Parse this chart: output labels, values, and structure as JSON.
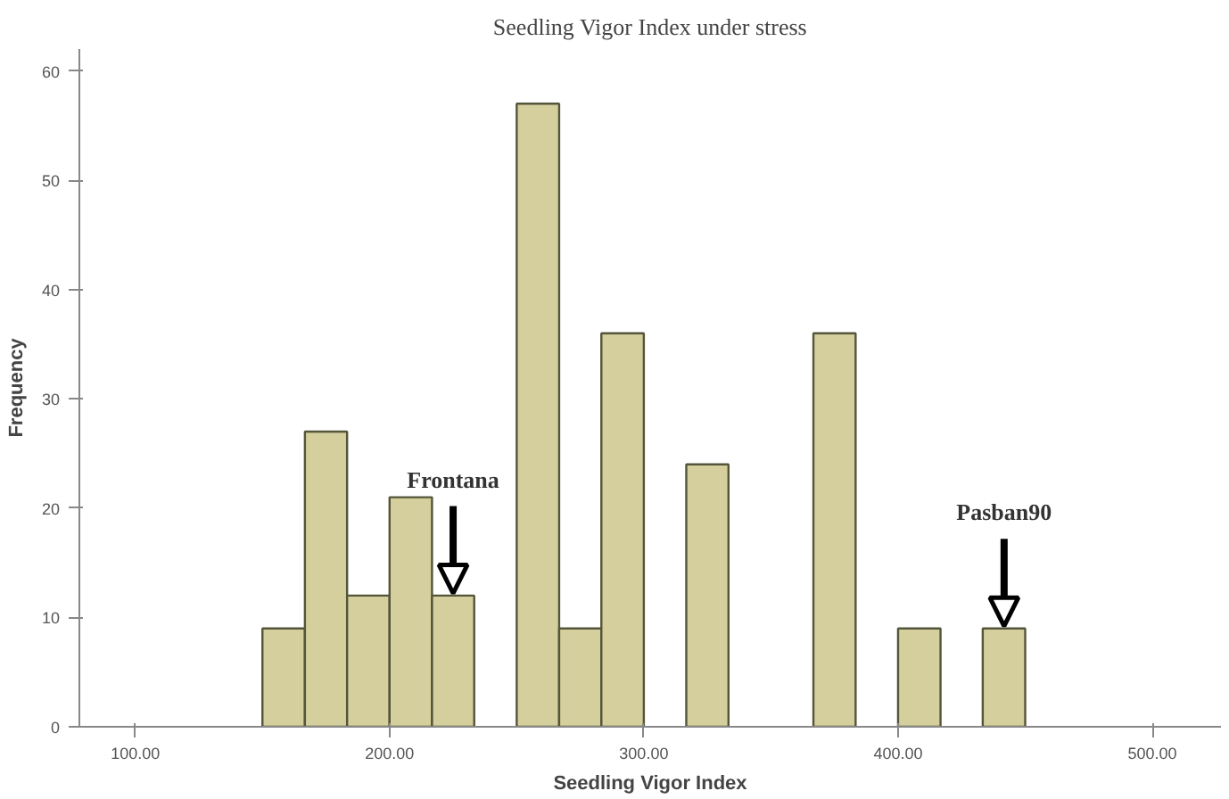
{
  "chart_data": {
    "type": "histogram",
    "title": "Seedling Vigor Index under stress",
    "xlabel": "Seedling Vigor Index",
    "ylabel": "Frequency",
    "bins": [
      150,
      166.7,
      183.3,
      200,
      216.7,
      233.3,
      250,
      266.7,
      283.3,
      300,
      316.7,
      333.3,
      350,
      366.7,
      383.3,
      400,
      416.7,
      433.3,
      450
    ],
    "values": [
      9,
      27,
      12,
      21,
      12,
      0,
      57,
      9,
      36,
      0,
      24,
      0,
      0,
      36,
      0,
      9,
      0,
      9
    ],
    "color": "#d4cf9c",
    "xlim": [
      78,
      527
    ],
    "ylim": [
      0,
      62
    ],
    "xticks": [
      {
        "value": 100,
        "label": "100.00"
      },
      {
        "value": 200,
        "label": "200.00"
      },
      {
        "value": 300,
        "label": "300.00"
      },
      {
        "value": 400,
        "label": "400.00"
      },
      {
        "value": 500,
        "label": "500.00"
      }
    ],
    "yticks": [
      0,
      10,
      20,
      30,
      40,
      50,
      60
    ],
    "grid": false,
    "annotations": [
      {
        "text": "Frontana",
        "x": 225,
        "y": 12
      },
      {
        "text": "Pasban90",
        "x": 441.7,
        "y": 9
      }
    ]
  }
}
